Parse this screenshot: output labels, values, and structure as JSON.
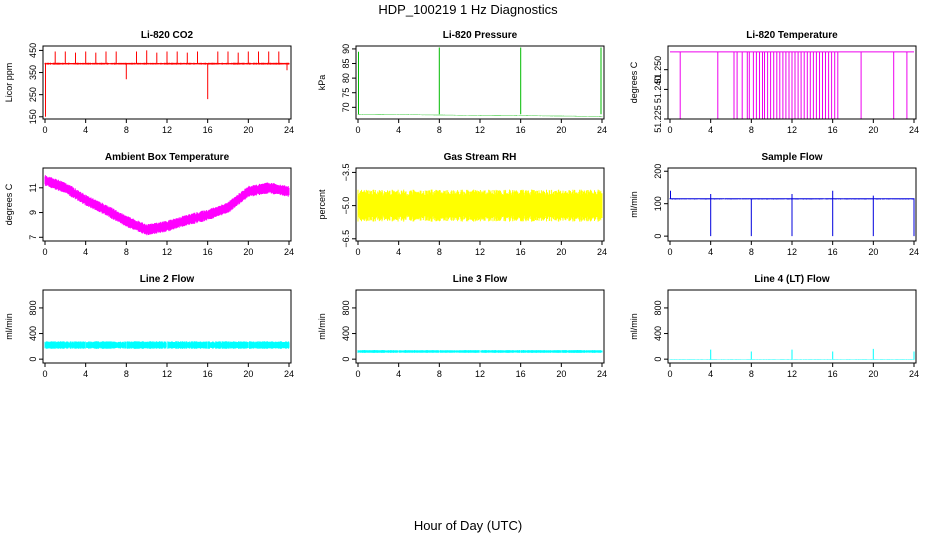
{
  "figure": {
    "title": "HDP_100219  1 Hz Diagnostics",
    "xlabel": "Hour of Day (UTC)"
  },
  "chart_data": [
    {
      "type": "line",
      "title": "Li-820 CO2",
      "ylabel": "Licor ppm",
      "color": "#ff0000",
      "xlim": [
        0,
        24
      ],
      "xticks": [
        0,
        4,
        8,
        12,
        16,
        20,
        24
      ],
      "ylim": [
        140,
        470
      ],
      "yticks": [
        150,
        250,
        350,
        450
      ],
      "ytick_labels": [
        "150",
        "250",
        "350",
        "450"
      ],
      "pattern": "spiky",
      "base": 390,
      "noise": 8,
      "spikes_up": [
        [
          1,
          445
        ],
        [
          2,
          445
        ],
        [
          3,
          440
        ],
        [
          4,
          445
        ],
        [
          5,
          440
        ],
        [
          6,
          445
        ],
        [
          7,
          445
        ],
        [
          9,
          445
        ],
        [
          10,
          450
        ],
        [
          11,
          440
        ],
        [
          12,
          445
        ],
        [
          13,
          445
        ],
        [
          14,
          440
        ],
        [
          15,
          445
        ],
        [
          17,
          445
        ],
        [
          18,
          445
        ],
        [
          19,
          440
        ],
        [
          20,
          445
        ],
        [
          21,
          445
        ],
        [
          22,
          445
        ],
        [
          23,
          445
        ]
      ],
      "spikes_down": [
        [
          0.05,
          150
        ],
        [
          8,
          320
        ],
        [
          16,
          230
        ],
        [
          23.8,
          360
        ]
      ]
    },
    {
      "type": "line",
      "title": "Li-820 Pressure",
      "ylabel": "kPa",
      "color": "#00bb00",
      "xlim": [
        0,
        24
      ],
      "xticks": [
        0,
        4,
        8,
        12,
        16,
        20,
        24
      ],
      "ylim": [
        66,
        91
      ],
      "yticks": [
        70,
        75,
        80,
        85,
        90
      ],
      "ytick_labels": [
        "70",
        "75",
        "80",
        "85",
        "90"
      ],
      "pattern": "drift",
      "start": 67.6,
      "end": 66.9,
      "noise": 0.15,
      "spikes_up": [
        [
          0.05,
          89
        ],
        [
          8,
          90.5
        ],
        [
          16,
          90.5
        ],
        [
          23.9,
          90.5
        ]
      ],
      "spikes_down": []
    },
    {
      "type": "line",
      "title": "Li-820 Temperature",
      "ylabel": "degrees C",
      "color": "#ee00ee",
      "xlim": [
        0,
        24
      ],
      "xticks": [
        0,
        4,
        8,
        12,
        16,
        20,
        24
      ],
      "ylim": [
        51.225,
        51.262
      ],
      "yticks": [
        51.225,
        51.24,
        51.25
      ],
      "ytick_labels": [
        "51.225",
        "51.240",
        "51.250"
      ],
      "pattern": "dropouts",
      "base": 51.259,
      "low": 51.225,
      "dropouts": [
        1,
        4.7,
        6.3,
        6.6,
        7.1,
        7.6,
        7.8,
        8.2,
        8.5,
        8.8,
        9.1,
        9.3,
        9.6,
        9.9,
        10.2,
        10.5,
        10.8,
        11.1,
        11.4,
        11.7,
        12.0,
        12.3,
        12.6,
        12.9,
        13.2,
        13.5,
        13.8,
        14.1,
        14.4,
        14.7,
        15.0,
        15.3,
        15.6,
        15.9,
        16.2,
        16.5,
        18.8,
        22.0,
        23.3
      ]
    },
    {
      "type": "line",
      "title": "Ambient Box Temperature",
      "ylabel": "degrees C",
      "color": "#ff00ff",
      "xlim": [
        0,
        24
      ],
      "xticks": [
        0,
        4,
        8,
        12,
        16,
        20,
        24
      ],
      "ylim": [
        6.7,
        12.6
      ],
      "yticks": [
        7,
        9,
        11
      ],
      "ytick_labels": [
        "7",
        "9",
        "11"
      ],
      "pattern": "curve",
      "curve": [
        [
          0,
          11.6
        ],
        [
          2,
          11.0
        ],
        [
          4,
          10.0
        ],
        [
          6,
          9.2
        ],
        [
          8,
          8.3
        ],
        [
          10,
          7.6
        ],
        [
          12,
          7.9
        ],
        [
          14,
          8.4
        ],
        [
          16,
          8.8
        ],
        [
          18,
          9.4
        ],
        [
          20,
          10.7
        ],
        [
          22,
          11.0
        ],
        [
          24,
          10.7
        ]
      ],
      "noise": 0.9
    },
    {
      "type": "line",
      "title": "Gas Stream RH",
      "ylabel": "percent",
      "color": "#ffff00",
      "xlim": [
        0,
        24
      ],
      "xticks": [
        0,
        4,
        8,
        12,
        16,
        20,
        24
      ],
      "ylim": [
        -6.6,
        -3.3
      ],
      "yticks": [
        -6.5,
        -5.0,
        -3.5
      ],
      "ytick_labels": [
        "−6.5",
        "−5.0",
        "−3.5"
      ],
      "pattern": "band",
      "base": -5.0,
      "noise": 1.45
    },
    {
      "type": "line",
      "title": "Sample Flow",
      "ylabel": "ml/min",
      "color": "#0000dd",
      "xlim": [
        0,
        24
      ],
      "xticks": [
        0,
        4,
        8,
        12,
        16,
        20,
        24
      ],
      "ylim": [
        -15,
        210
      ],
      "yticks": [
        0,
        100,
        200
      ],
      "ytick_labels": [
        "0",
        "100",
        "200"
      ],
      "pattern": "spiky",
      "base": 115,
      "noise": 4,
      "spikes_up": [
        [
          0.05,
          140
        ],
        [
          4,
          130
        ],
        [
          12,
          130
        ],
        [
          16,
          140
        ],
        [
          20,
          125
        ]
      ],
      "spikes_down": [
        [
          4,
          0
        ],
        [
          8,
          0
        ],
        [
          12,
          0
        ],
        [
          16,
          0
        ],
        [
          20,
          0
        ],
        [
          24,
          0
        ]
      ]
    },
    {
      "type": "line",
      "title": "Line 2 Flow",
      "ylabel": "ml/min",
      "color": "#00ffff",
      "xlim": [
        0,
        24
      ],
      "xticks": [
        0,
        4,
        8,
        12,
        16,
        20,
        24
      ],
      "ylim": [
        -60,
        1080
      ],
      "yticks": [
        0,
        400,
        800
      ],
      "ytick_labels": [
        "0",
        "400",
        "800"
      ],
      "pattern": "band",
      "base": 220,
      "noise": 120,
      "gaps": [
        4,
        8,
        12,
        16,
        20
      ]
    },
    {
      "type": "line",
      "title": "Line 3 Flow",
      "ylabel": "ml/min",
      "color": "#00ffff",
      "xlim": [
        0,
        24
      ],
      "xticks": [
        0,
        4,
        8,
        12,
        16,
        20,
        24
      ],
      "ylim": [
        -60,
        1080
      ],
      "yticks": [
        0,
        400,
        800
      ],
      "ytick_labels": [
        "0",
        "400",
        "800"
      ],
      "pattern": "band",
      "base": 120,
      "noise": 45,
      "gaps": [
        4,
        8,
        12,
        16,
        20
      ]
    },
    {
      "type": "line",
      "title": "Line 4 (LT) Flow",
      "ylabel": "ml/min",
      "color": "#00ffff",
      "xlim": [
        0,
        24
      ],
      "xticks": [
        0,
        4,
        8,
        12,
        16,
        20,
        24
      ],
      "ylim": [
        -60,
        1080
      ],
      "yticks": [
        0,
        400,
        800
      ],
      "ytick_labels": [
        "0",
        "400",
        "800"
      ],
      "pattern": "spiky",
      "base": -5,
      "noise": 6,
      "spikes_up": [
        [
          4,
          150
        ],
        [
          8,
          120
        ],
        [
          12,
          150
        ],
        [
          16,
          120
        ],
        [
          20,
          160
        ],
        [
          24,
          120
        ]
      ],
      "spikes_down": []
    }
  ]
}
